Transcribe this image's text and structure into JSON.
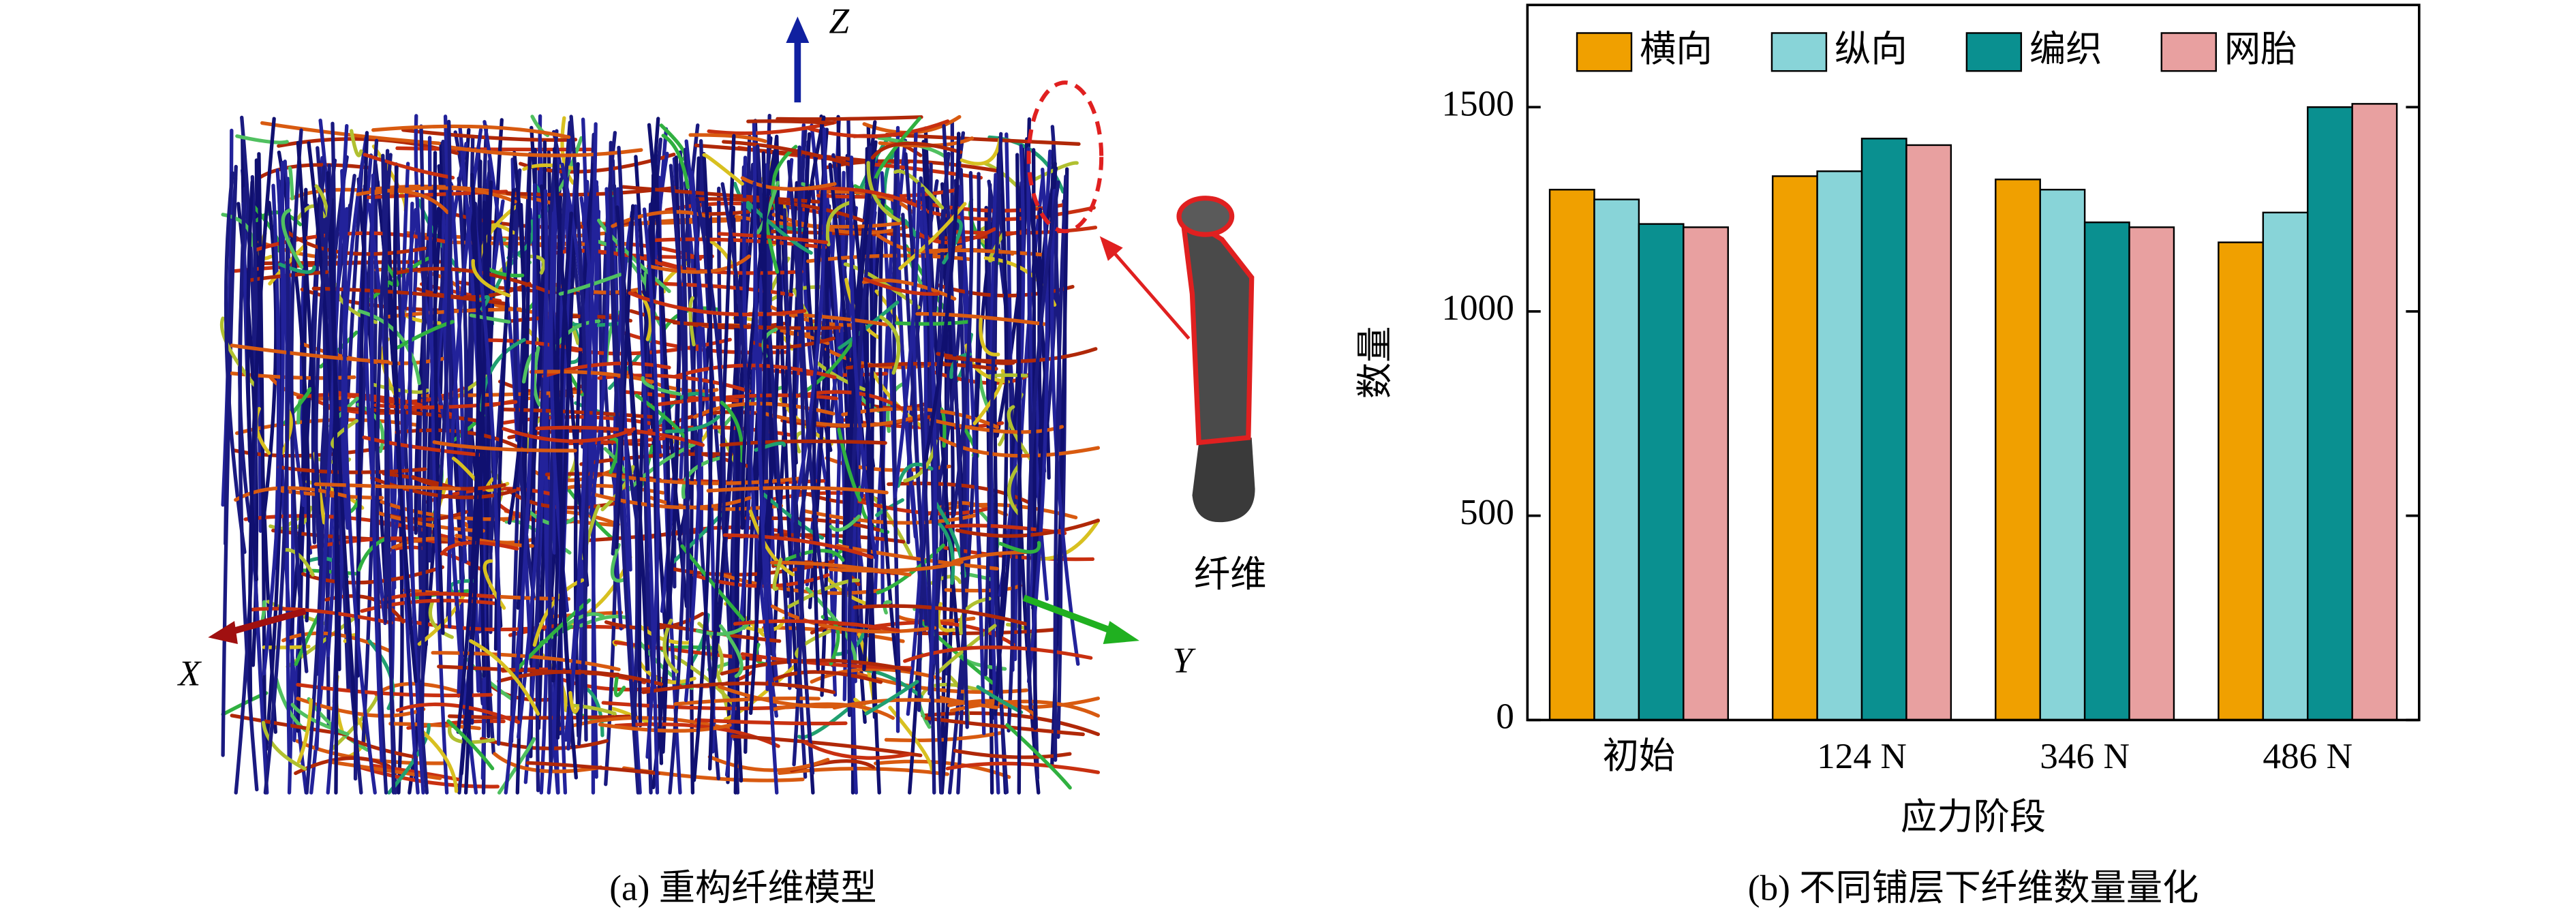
{
  "panel_a": {
    "axes": [
      "X",
      "Y",
      "Z"
    ],
    "label": "纤维",
    "caption": "(a) 重构纤维模型"
  },
  "chart_data": {
    "type": "bar",
    "caption": "(b) 不同铺层下纤维数量量化",
    "x_label": "应力阶段",
    "y_label": "数量",
    "categories": [
      "初始",
      "124 N",
      "346 N",
      "486 N"
    ],
    "series": [
      {
        "name": "横向",
        "color": "#f0a000",
        "values": [
          1298,
          1331,
          1323,
          1169
        ]
      },
      {
        "name": "纵向",
        "color": "#88d4d8",
        "values": [
          1274,
          1343,
          1298,
          1242
        ]
      },
      {
        "name": "编织",
        "color": "#0a9090",
        "values": [
          1214,
          1423,
          1218,
          1500
        ]
      },
      {
        "name": "网胎",
        "color": "#e8a0a0",
        "values": [
          1206,
          1407,
          1206,
          1508
        ]
      }
    ],
    "ylim": [
      0,
      1750
    ],
    "yticks": [
      0,
      500,
      1000,
      1500
    ],
    "legend": "top"
  }
}
